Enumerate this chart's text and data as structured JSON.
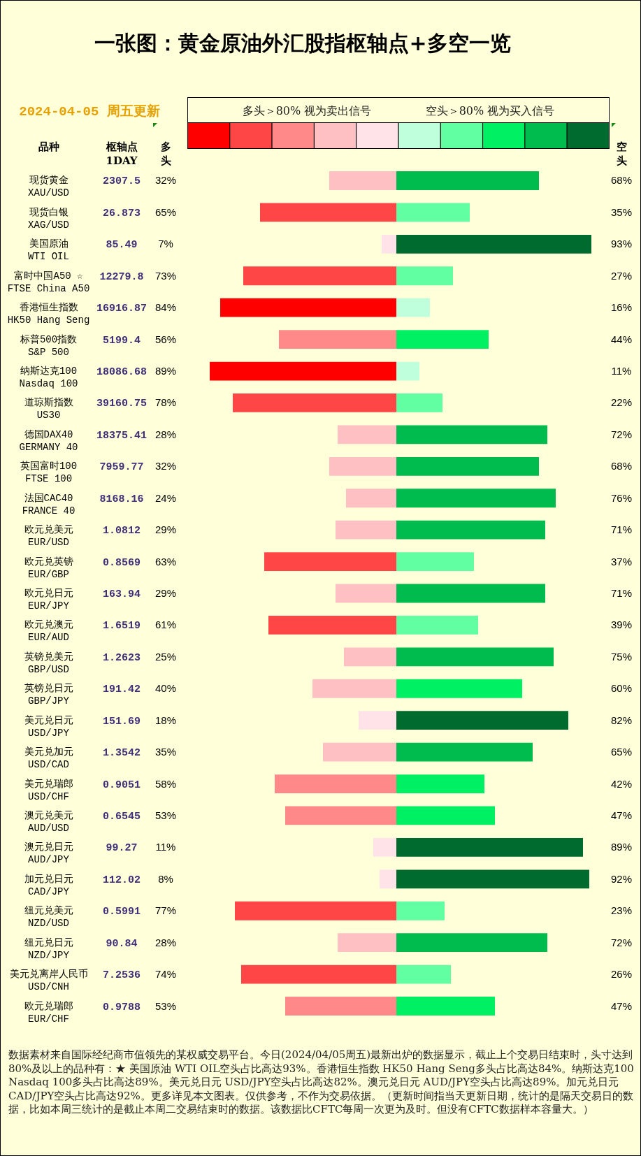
{
  "chart_data": [
    {
      "type": "bar",
      "orientation": "horizontal",
      "title": "一张图：黄金原油外汇股指枢轴点+多空一览",
      "subtitle": "2024-04-05 周五更新",
      "ylabel": "品种",
      "y2label": "枢轴点\n1DAY",
      "categories": [
        "现货黄金\nXAU/USD",
        "现货白银\nXAG/USD",
        "美国原油\nWTI OIL",
        "富时中国A50 ☆\nFTSE China A50",
        "香港恒生指数\nHK50 Hang Seng",
        "标普500指数\nS&P 500",
        "纳斯达克100\nNasdaq 100",
        "道琼斯指数\nUS30",
        "德国DAX40\nGERMANY 40",
        "英国富时100\nFTSE 100",
        "法国CAC40\nFRANCE 40",
        "欧元兑美元\nEUR/USD",
        "欧元兑英镑\nEUR/GBP",
        "欧元兑日元\nEUR/JPY",
        "欧元兑澳元\nEUR/AUD",
        "英镑兑美元\nGBP/USD",
        "英镑兑日元\nGBP/JPY",
        "美元兑日元\nUSD/JPY",
        "美元兑加元\nUSD/CAD",
        "美元兑瑞郎\nUSD/CHF",
        "澳元兑美元\nAUD/USD",
        "澳元兑日元\nAUD/JPY",
        "加元兑日元\nCAD/JPY",
        "纽元兑美元\nNZD/USD",
        "纽元兑日元\nNZD/JPY",
        "美元兑离岸人民币\nUSD/CNH",
        "欧元兑瑞郎\nEUR/CHF"
      ],
      "y2_categories": [
        "2307.5",
        "26.873",
        "85.49",
        "12279.8",
        "16916.87",
        "5199.4",
        "18086.68",
        "39160.75",
        "18375.41",
        "7959.77",
        "8168.16",
        "1.0812",
        "0.8569",
        "163.94",
        "1.6519",
        "1.2623",
        "191.42",
        "151.69",
        "1.3542",
        "0.9051",
        "0.6545",
        "99.27",
        "112.02",
        "0.5991",
        "90.84",
        "7.2536",
        "0.9788"
      ],
      "series": [
        {
          "name": "多头",
          "values": [
            32,
            65,
            7,
            73,
            84,
            56,
            89,
            78,
            28,
            32,
            24,
            29,
            63,
            29,
            61,
            25,
            40,
            18,
            35,
            58,
            53,
            11,
            8,
            77,
            28,
            74,
            53
          ],
          "colors": [
            "#ffc0c4",
            "#ff4646",
            "#ffe3e8",
            "#ff4646",
            "#ff0000",
            "#ff8888",
            "#ff0000",
            "#ff4646",
            "#ffc0c4",
            "#ffc0c4",
            "#ffc0c4",
            "#ffc0c4",
            "#ff4646",
            "#ffc0c4",
            "#ff4646",
            "#ffc0c4",
            "#ffc0c4",
            "#ffe3e8",
            "#ffc0c4",
            "#ff8888",
            "#ff8888",
            "#ffe3e8",
            "#ffe3e8",
            "#ff4646",
            "#ffc0c4",
            "#ff4646",
            "#ff8888"
          ],
          "value_labels": [
            "32%",
            "65%",
            "7%",
            "73%",
            "84%",
            "56%",
            "89%",
            "78%",
            "28%",
            "32%",
            "24%",
            "29%",
            "63%",
            "29%",
            "61%",
            "25%",
            "40%",
            "18%",
            "35%",
            "58%",
            "53%",
            "11%",
            "8%",
            "77%",
            "28%",
            "74%",
            "53%"
          ]
        }
      ],
      "tick_labels": "y",
      "annotations": [
        "多头＞80% 视为卖出信号",
        "数据素材来自国际经纪商市值领先的某权威交易平台。今日(2024/04/05周五)最新出炉的数据显示，截止上个交易日结束时，头寸达到80%及以上的品种有：★ 美国原油 WTI OIL空头占比高达93%。香港恒生指数 HK50 Hang Seng多头占比高达84%。纳斯达克100 Nasdaq 100多头占比高达89%。美元兑日元 USD/JPY空头占比高达82%。澳元兑日元 AUD/JPY空头占比高达89%。加元兑日元 CAD/JPY空头占比高达92%。更多详见本文图表。仅供参考，不作为交易依据。（更新时间指当天更新日期，统计的是隔天交易日的数据，比如本周三统计的是截止本周二交易结束时的数据。该数据比CFTC每周一次更为及时。但没有CFTC数据样本容量大。）"
      ]
    },
    {
      "type": "bar",
      "orientation": "horizontal",
      "categories": [
        null,
        null,
        null,
        null,
        null,
        null,
        null,
        null,
        null,
        null,
        null,
        null,
        null,
        null,
        null,
        null,
        null,
        null,
        null,
        null,
        null,
        null,
        null,
        null,
        null,
        null,
        null
      ],
      "series": [
        {
          "name": "空头",
          "values": [
            68,
            35,
            93,
            27,
            16,
            44,
            11,
            22,
            72,
            68,
            76,
            71,
            37,
            71,
            39,
            75,
            60,
            82,
            65,
            42,
            47,
            89,
            92,
            23,
            72,
            26,
            47
          ],
          "colors": [
            "#00bb4d",
            "#62ffa2",
            "#006b2f",
            "#62ffa2",
            "#bfffdb",
            "#00f063",
            "#bfffdb",
            "#62ffa2",
            "#00bb4d",
            "#00bb4d",
            "#00bb4d",
            "#00bb4d",
            "#62ffa2",
            "#00bb4d",
            "#62ffa2",
            "#00bb4d",
            "#00f063",
            "#006b2f",
            "#00bb4d",
            "#00f063",
            "#00f063",
            "#006b2f",
            "#006b2f",
            "#62ffa2",
            "#00bb4d",
            "#62ffa2",
            "#00f063"
          ],
          "value_labels": [
            "68%",
            "35%",
            "93%",
            "27%",
            "16%",
            "44%",
            "11%",
            "22%",
            "72%",
            "68%",
            "76%",
            "71%",
            "37%",
            "71%",
            "39%",
            "75%",
            "60%",
            "82%",
            "65%",
            "42%",
            "47%",
            "89%",
            "92%",
            "23%",
            "72%",
            "26%",
            "47%"
          ]
        }
      ],
      "tick_labels": false,
      "annotations": [
        "空头＞80% 视为买入信号"
      ]
    }
  ]
}
